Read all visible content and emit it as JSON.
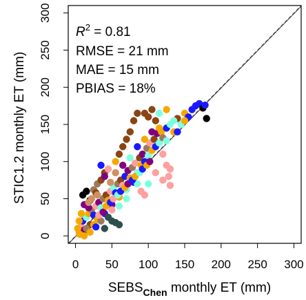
{
  "chart_data": {
    "type": "scatter",
    "title": "",
    "xlabel": {
      "main": "SEBS",
      "sub": "Chen",
      "rest": "  monthly ET (mm)"
    },
    "ylabel": "STIC1.2 monthly ET (mm)",
    "xlim": [
      -10,
      310
    ],
    "ylim": [
      -10,
      310
    ],
    "xticks": [
      0,
      50,
      100,
      150,
      200,
      250,
      300
    ],
    "yticks": [
      0,
      50,
      100,
      150,
      200,
      250,
      300
    ],
    "grid": false,
    "legend": "none",
    "statistics": [
      {
        "label_main": "R",
        "label_sup": "2",
        "label_rest": " = 0.81"
      },
      {
        "label_main": "RMSE = 21 mm"
      },
      {
        "label_main": "MAE = 15 mm"
      },
      {
        "label_main": "PBIAS = 18%"
      }
    ],
    "reference_lines": [
      {
        "name": "1:1",
        "style": "dashed",
        "color": "#555555"
      },
      {
        "name": "fit",
        "style": "solid",
        "color": "#333333",
        "slope": 1.0,
        "intercept": -1.0
      }
    ],
    "marker_colors": [
      "#f5a800",
      "#8b4513",
      "#9c7a5e",
      "#80ffe0",
      "#1a1aff",
      "#800080",
      "#ffa0a0",
      "#000000",
      "#2f4f4f",
      "#d09060"
    ],
    "points": [
      [
        5,
        5,
        "#f5a800"
      ],
      [
        8,
        12,
        "#ffa0a0"
      ],
      [
        10,
        20,
        "#1a1aff"
      ],
      [
        12,
        8,
        "#800080"
      ],
      [
        15,
        25,
        "#80ffe0"
      ],
      [
        18,
        30,
        "#f5a800"
      ],
      [
        20,
        15,
        "#8b4513"
      ],
      [
        22,
        35,
        "#9c7a5e"
      ],
      [
        25,
        28,
        "#1a1aff"
      ],
      [
        28,
        40,
        "#ffa0a0"
      ],
      [
        30,
        22,
        "#f5a800"
      ],
      [
        32,
        45,
        "#800080"
      ],
      [
        35,
        38,
        "#80ffe0"
      ],
      [
        38,
        50,
        "#9c7a5e"
      ],
      [
        40,
        30,
        "#1a1aff"
      ],
      [
        42,
        55,
        "#8b4513"
      ],
      [
        45,
        48,
        "#f5a800"
      ],
      [
        48,
        60,
        "#ffa0a0"
      ],
      [
        50,
        42,
        "#800080"
      ],
      [
        52,
        65,
        "#80ffe0"
      ],
      [
        55,
        58,
        "#1a1aff"
      ],
      [
        58,
        70,
        "#9c7a5e"
      ],
      [
        60,
        52,
        "#f5a800"
      ],
      [
        62,
        75,
        "#8b4513"
      ],
      [
        65,
        68,
        "#ffa0a0"
      ],
      [
        68,
        80,
        "#1a1aff"
      ],
      [
        70,
        62,
        "#80ffe0"
      ],
      [
        72,
        88,
        "#800080"
      ],
      [
        75,
        78,
        "#f5a800"
      ],
      [
        78,
        92,
        "#9c7a5e"
      ],
      [
        80,
        72,
        "#1a1aff"
      ],
      [
        82,
        98,
        "#ffa0a0"
      ],
      [
        85,
        85,
        "#80ffe0"
      ],
      [
        88,
        105,
        "#8b4513"
      ],
      [
        90,
        95,
        "#f5a800"
      ],
      [
        92,
        110,
        "#800080"
      ],
      [
        95,
        100,
        "#1a1aff"
      ],
      [
        98,
        118,
        "#9c7a5e"
      ],
      [
        100,
        108,
        "#80ffe0"
      ],
      [
        102,
        125,
        "#ffa0a0"
      ],
      [
        105,
        115,
        "#f5a800"
      ],
      [
        108,
        130,
        "#8b4513"
      ],
      [
        110,
        120,
        "#1a1aff"
      ],
      [
        112,
        138,
        "#800080"
      ],
      [
        115,
        125,
        "#80ffe0"
      ],
      [
        118,
        140,
        "#f5a800"
      ],
      [
        120,
        132,
        "#9c7a5e"
      ],
      [
        125,
        145,
        "#1a1aff"
      ],
      [
        130,
        150,
        "#80ffe0"
      ],
      [
        135,
        140,
        "#f5a800"
      ],
      [
        140,
        158,
        "#8b4513"
      ],
      [
        145,
        150,
        "#80ffe0"
      ],
      [
        150,
        165,
        "#f5a800"
      ],
      [
        155,
        160,
        "#1a1aff"
      ],
      [
        160,
        170,
        "#1a1aff"
      ],
      [
        165,
        175,
        "#1a1aff"
      ],
      [
        170,
        178,
        "#1a1aff"
      ],
      [
        175,
        172,
        "#000000"
      ],
      [
        180,
        158,
        "#000000"
      ],
      [
        178,
        176,
        "#1a1aff"
      ],
      [
        10,
        55,
        "#000000"
      ],
      [
        15,
        60,
        "#000000"
      ],
      [
        20,
        48,
        "#000000"
      ],
      [
        25,
        62,
        "#9c7a5e"
      ],
      [
        30,
        70,
        "#9c7a5e"
      ],
      [
        12,
        42,
        "#800080"
      ],
      [
        18,
        38,
        "#800080"
      ],
      [
        28,
        58,
        "#8b4513"
      ],
      [
        35,
        75,
        "#8b4513"
      ],
      [
        40,
        85,
        "#8b4513"
      ],
      [
        45,
        25,
        "#2f4f4f"
      ],
      [
        50,
        20,
        "#2f4f4f"
      ],
      [
        55,
        18,
        "#2f4f4f"
      ],
      [
        60,
        15,
        "#2f4f4f"
      ],
      [
        40,
        10,
        "#2f4f4f"
      ],
      [
        60,
        110,
        "#8b4513"
      ],
      [
        65,
        120,
        "#8b4513"
      ],
      [
        70,
        130,
        "#8b4513"
      ],
      [
        75,
        140,
        "#8b4513"
      ],
      [
        80,
        155,
        "#8b4513"
      ],
      [
        85,
        165,
        "#8b4513"
      ],
      [
        95,
        165,
        "#8b4513"
      ],
      [
        100,
        160,
        "#8b4513"
      ],
      [
        110,
        155,
        "#8b4513"
      ],
      [
        105,
        170,
        "#8b4513"
      ],
      [
        115,
        165,
        "#80ffe0"
      ],
      [
        125,
        170,
        "#f5a800"
      ],
      [
        135,
        155,
        "#80ffe0"
      ],
      [
        120,
        110,
        "#ffa0a0"
      ],
      [
        125,
        95,
        "#ffa0a0"
      ],
      [
        130,
        90,
        "#ffa0a0"
      ],
      [
        128,
        80,
        "#ffa0a0"
      ],
      [
        120,
        75,
        "#ffa0a0"
      ],
      [
        130,
        68,
        "#ffa0a0"
      ],
      [
        110,
        85,
        "#ffa0a0"
      ],
      [
        90,
        60,
        "#ffa0a0"
      ],
      [
        95,
        55,
        "#ffa0a0"
      ],
      [
        100,
        70,
        "#80ffe0"
      ],
      [
        85,
        70,
        "#80ffe0"
      ],
      [
        70,
        50,
        "#80ffe0"
      ],
      [
        60,
        40,
        "#80ffe0"
      ],
      [
        50,
        35,
        "#ffa0a0"
      ],
      [
        45,
        90,
        "#ffa0a0"
      ],
      [
        40,
        80,
        "#800080"
      ],
      [
        35,
        95,
        "#1a1aff"
      ],
      [
        55,
        100,
        "#f5a800"
      ],
      [
        65,
        95,
        "#800080"
      ],
      [
        75,
        105,
        "#80ffe0"
      ],
      [
        85,
        120,
        "#1a1aff"
      ],
      [
        95,
        130,
        "#f5a800"
      ],
      [
        105,
        140,
        "#800080"
      ],
      [
        115,
        145,
        "#f5a800"
      ],
      [
        125,
        128,
        "#80ffe0"
      ],
      [
        140,
        140,
        "#1a1aff"
      ],
      [
        150,
        155,
        "#f5a800"
      ],
      [
        8,
        30,
        "#f5a800"
      ],
      [
        5,
        20,
        "#f5a800"
      ],
      [
        15,
        10,
        "#9c7a5e"
      ],
      [
        25,
        15,
        "#f5a800"
      ],
      [
        35,
        20,
        "#9c7a5e"
      ],
      [
        3,
        10,
        "#f5a800"
      ],
      [
        6,
        2,
        "#f5a800"
      ],
      [
        12,
        0,
        "#f5a800"
      ],
      [
        20,
        5,
        "#f5a800"
      ],
      [
        28,
        12,
        "#1a1aff"
      ],
      [
        32,
        28,
        "#ffa0a0"
      ],
      [
        38,
        32,
        "#800080"
      ],
      [
        42,
        40,
        "#f5a800"
      ],
      [
        48,
        45,
        "#1a1aff"
      ],
      [
        52,
        50,
        "#ffa0a0"
      ],
      [
        58,
        55,
        "#80ffe0"
      ],
      [
        62,
        60,
        "#1a1aff"
      ],
      [
        68,
        65,
        "#f5a800"
      ],
      [
        72,
        70,
        "#800080"
      ],
      [
        78,
        75,
        "#1a1aff"
      ],
      [
        82,
        80,
        "#f5a800"
      ],
      [
        88,
        85,
        "#80ffe0"
      ],
      [
        92,
        90,
        "#1a1aff"
      ],
      [
        98,
        95,
        "#f5a800"
      ],
      [
        102,
        100,
        "#800080"
      ],
      [
        30,
        55,
        "#d09060"
      ],
      [
        22,
        50,
        "#d09060"
      ],
      [
        48,
        72,
        "#d09060"
      ],
      [
        55,
        85,
        "#d09060"
      ],
      [
        18,
        45,
        "#d09060"
      ]
    ]
  }
}
